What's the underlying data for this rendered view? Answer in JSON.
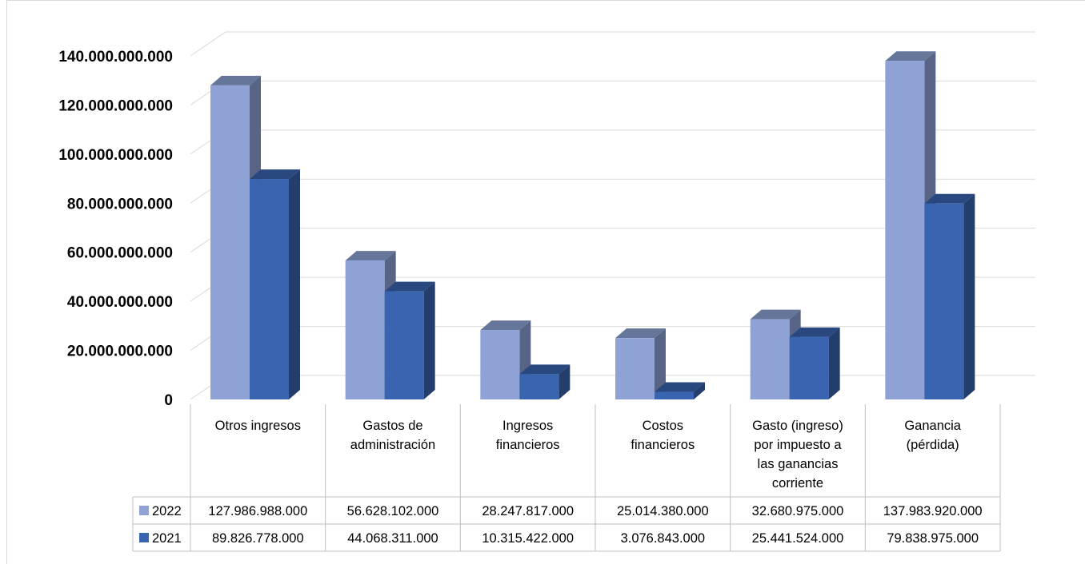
{
  "chart_data": {
    "type": "bar",
    "title": "",
    "xlabel": "",
    "ylabel": "",
    "categories": [
      [
        "Otros ingresos"
      ],
      [
        "Gastos de",
        "administración"
      ],
      [
        "Ingresos",
        "financieros"
      ],
      [
        "Costos",
        "financieros"
      ],
      [
        "Gasto (ingreso)",
        "por impuesto a",
        "las ganancias",
        "corriente"
      ],
      [
        "Ganancia",
        "(pérdida)"
      ]
    ],
    "y_tick_labels": [
      "0",
      "20.000.000.000",
      "40.000.000.000",
      "60.000.000.000",
      "80.000.000.000",
      "100.000.000.000",
      "120.000.000.000",
      "140.000.000.000"
    ],
    "ylim": [
      0,
      140000000000
    ],
    "grid": true,
    "legend": "data-table",
    "series": [
      {
        "name": "2022",
        "color": "#8EA2D6",
        "values": [
          127986988000,
          56628102000,
          28247817000,
          25014380000,
          32680975000,
          137983920000
        ],
        "labels": [
          "127.986.988.000",
          "56.628.102.000",
          "28.247.817.000",
          "25.014.380.000",
          "32.680.975.000",
          "137.983.920.000"
        ]
      },
      {
        "name": "2021",
        "color": "#3964B0",
        "values": [
          89826778000,
          44068311000,
          10315422000,
          3076843000,
          25441524000,
          79838975000
        ],
        "labels": [
          "89.826.778.000",
          "44.068.311.000",
          "10.315.422.000",
          "3.076.843.000",
          "25.441.524.000",
          "79.838.975.000"
        ]
      }
    ]
  }
}
